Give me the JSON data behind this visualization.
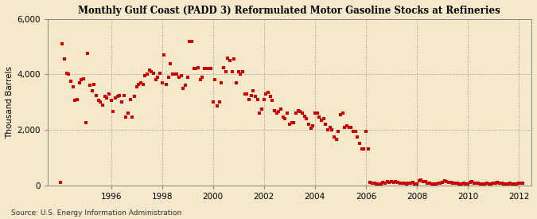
{
  "title": "Monthly Gulf Coast (PADD 3) Reformulated Motor Gasoline Stocks at Refineries",
  "ylabel": "Thousand Barrels",
  "source": "Source: U.S. Energy Information Administration",
  "background_color": "#F5E8CB",
  "plot_background_color": "#F5E8CB",
  "marker_color": "#CC0000",
  "marker_size": 3.5,
  "xlim": [
    1993.5,
    2012.5
  ],
  "ylim": [
    0,
    6000
  ],
  "yticks": [
    0,
    2000,
    4000,
    6000
  ],
  "xticks": [
    1996,
    1998,
    2000,
    2002,
    2004,
    2006,
    2008,
    2010,
    2012
  ],
  "data": [
    [
      1994.0,
      100
    ],
    [
      1994.083,
      5100
    ],
    [
      1994.167,
      4550
    ],
    [
      1994.25,
      4050
    ],
    [
      1994.333,
      4000
    ],
    [
      1994.417,
      3750
    ],
    [
      1994.5,
      3550
    ],
    [
      1994.583,
      3050
    ],
    [
      1994.667,
      3100
    ],
    [
      1994.75,
      3700
    ],
    [
      1994.833,
      3800
    ],
    [
      1994.917,
      3850
    ],
    [
      1995.0,
      2250
    ],
    [
      1995.083,
      4750
    ],
    [
      1995.167,
      3600
    ],
    [
      1995.25,
      3400
    ],
    [
      1995.333,
      3650
    ],
    [
      1995.417,
      3250
    ],
    [
      1995.5,
      3050
    ],
    [
      1995.583,
      3000
    ],
    [
      1995.667,
      2900
    ],
    [
      1995.75,
      3200
    ],
    [
      1995.833,
      3150
    ],
    [
      1995.917,
      3300
    ],
    [
      1996.0,
      3050
    ],
    [
      1996.083,
      2650
    ],
    [
      1996.167,
      3150
    ],
    [
      1996.25,
      3200
    ],
    [
      1996.333,
      3250
    ],
    [
      1996.417,
      3000
    ],
    [
      1996.5,
      3250
    ],
    [
      1996.583,
      2450
    ],
    [
      1996.667,
      2600
    ],
    [
      1996.75,
      3100
    ],
    [
      1996.833,
      2450
    ],
    [
      1996.917,
      3200
    ],
    [
      1997.0,
      3550
    ],
    [
      1997.083,
      3650
    ],
    [
      1997.167,
      3700
    ],
    [
      1997.25,
      3650
    ],
    [
      1997.333,
      3950
    ],
    [
      1997.417,
      4000
    ],
    [
      1997.5,
      4150
    ],
    [
      1997.583,
      4100
    ],
    [
      1997.667,
      4050
    ],
    [
      1997.75,
      3800
    ],
    [
      1997.833,
      3900
    ],
    [
      1997.917,
      4050
    ],
    [
      1998.0,
      3700
    ],
    [
      1998.083,
      4700
    ],
    [
      1998.167,
      3650
    ],
    [
      1998.25,
      3900
    ],
    [
      1998.333,
      4400
    ],
    [
      1998.417,
      4000
    ],
    [
      1998.5,
      4000
    ],
    [
      1998.583,
      4000
    ],
    [
      1998.667,
      3900
    ],
    [
      1998.75,
      3950
    ],
    [
      1998.833,
      3500
    ],
    [
      1998.917,
      3600
    ],
    [
      1999.0,
      3900
    ],
    [
      1999.083,
      5200
    ],
    [
      1999.167,
      5200
    ],
    [
      1999.25,
      4200
    ],
    [
      1999.333,
      4200
    ],
    [
      1999.417,
      4250
    ],
    [
      1999.5,
      3800
    ],
    [
      1999.583,
      3900
    ],
    [
      1999.667,
      4200
    ],
    [
      1999.75,
      4200
    ],
    [
      1999.833,
      4200
    ],
    [
      1999.917,
      4200
    ],
    [
      2000.0,
      3000
    ],
    [
      2000.083,
      3800
    ],
    [
      2000.167,
      2850
    ],
    [
      2000.25,
      3000
    ],
    [
      2000.333,
      3700
    ],
    [
      2000.417,
      4250
    ],
    [
      2000.5,
      4100
    ],
    [
      2000.583,
      4600
    ],
    [
      2000.667,
      4500
    ],
    [
      2000.75,
      4100
    ],
    [
      2000.833,
      4550
    ],
    [
      2000.917,
      3700
    ],
    [
      2001.0,
      4100
    ],
    [
      2001.083,
      4000
    ],
    [
      2001.167,
      4100
    ],
    [
      2001.25,
      3300
    ],
    [
      2001.333,
      3300
    ],
    [
      2001.417,
      3100
    ],
    [
      2001.5,
      3250
    ],
    [
      2001.583,
      3400
    ],
    [
      2001.667,
      3200
    ],
    [
      2001.75,
      3100
    ],
    [
      2001.833,
      2600
    ],
    [
      2001.917,
      2750
    ],
    [
      2002.0,
      3100
    ],
    [
      2002.083,
      3300
    ],
    [
      2002.167,
      3350
    ],
    [
      2002.25,
      3200
    ],
    [
      2002.333,
      3050
    ],
    [
      2002.417,
      2700
    ],
    [
      2002.5,
      2600
    ],
    [
      2002.583,
      2650
    ],
    [
      2002.667,
      2750
    ],
    [
      2002.75,
      2450
    ],
    [
      2002.833,
      2400
    ],
    [
      2002.917,
      2600
    ],
    [
      2003.0,
      2200
    ],
    [
      2003.083,
      2250
    ],
    [
      2003.167,
      2250
    ],
    [
      2003.25,
      2600
    ],
    [
      2003.333,
      2700
    ],
    [
      2003.417,
      2650
    ],
    [
      2003.5,
      2600
    ],
    [
      2003.583,
      2500
    ],
    [
      2003.667,
      2400
    ],
    [
      2003.75,
      2200
    ],
    [
      2003.833,
      2050
    ],
    [
      2003.917,
      2150
    ],
    [
      2004.0,
      2600
    ],
    [
      2004.083,
      2600
    ],
    [
      2004.167,
      2450
    ],
    [
      2004.25,
      2350
    ],
    [
      2004.333,
      2400
    ],
    [
      2004.417,
      2200
    ],
    [
      2004.5,
      2000
    ],
    [
      2004.583,
      2100
    ],
    [
      2004.667,
      2000
    ],
    [
      2004.75,
      1750
    ],
    [
      2004.833,
      1650
    ],
    [
      2004.917,
      1950
    ],
    [
      2005.0,
      2550
    ],
    [
      2005.083,
      2600
    ],
    [
      2005.167,
      2100
    ],
    [
      2005.25,
      2150
    ],
    [
      2005.333,
      2100
    ],
    [
      2005.417,
      2100
    ],
    [
      2005.5,
      1950
    ],
    [
      2005.583,
      1950
    ],
    [
      2005.667,
      1750
    ],
    [
      2005.75,
      1500
    ],
    [
      2005.833,
      1300
    ],
    [
      2005.917,
      1300
    ],
    [
      2006.0,
      1950
    ],
    [
      2006.083,
      1300
    ],
    [
      2006.167,
      100
    ],
    [
      2006.25,
      80
    ],
    [
      2006.333,
      60
    ],
    [
      2006.417,
      50
    ],
    [
      2006.5,
      30
    ],
    [
      2006.583,
      50
    ],
    [
      2006.667,
      100
    ],
    [
      2006.75,
      80
    ],
    [
      2006.833,
      120
    ],
    [
      2006.917,
      100
    ],
    [
      2007.0,
      130
    ],
    [
      2007.083,
      100
    ],
    [
      2007.167,
      120
    ],
    [
      2007.25,
      90
    ],
    [
      2007.333,
      80
    ],
    [
      2007.417,
      70
    ],
    [
      2007.5,
      60
    ],
    [
      2007.583,
      50
    ],
    [
      2007.667,
      80
    ],
    [
      2007.75,
      60
    ],
    [
      2007.833,
      90
    ],
    [
      2007.917,
      50
    ],
    [
      2008.0,
      40
    ],
    [
      2008.083,
      150
    ],
    [
      2008.167,
      200
    ],
    [
      2008.25,
      130
    ],
    [
      2008.333,
      120
    ],
    [
      2008.417,
      80
    ],
    [
      2008.5,
      60
    ],
    [
      2008.583,
      40
    ],
    [
      2008.667,
      30
    ],
    [
      2008.75,
      50
    ],
    [
      2008.833,
      70
    ],
    [
      2008.917,
      80
    ],
    [
      2009.0,
      100
    ],
    [
      2009.083,
      150
    ],
    [
      2009.167,
      120
    ],
    [
      2009.25,
      100
    ],
    [
      2009.333,
      90
    ],
    [
      2009.417,
      80
    ],
    [
      2009.5,
      70
    ],
    [
      2009.583,
      60
    ],
    [
      2009.667,
      50
    ],
    [
      2009.75,
      50
    ],
    [
      2009.833,
      60
    ],
    [
      2009.917,
      50
    ],
    [
      2010.0,
      40
    ],
    [
      2010.083,
      100
    ],
    [
      2010.167,
      120
    ],
    [
      2010.25,
      80
    ],
    [
      2010.333,
      70
    ],
    [
      2010.417,
      60
    ],
    [
      2010.5,
      50
    ],
    [
      2010.583,
      40
    ],
    [
      2010.667,
      50
    ],
    [
      2010.75,
      60
    ],
    [
      2010.833,
      50
    ],
    [
      2010.917,
      40
    ],
    [
      2011.0,
      60
    ],
    [
      2011.083,
      80
    ],
    [
      2011.167,
      90
    ],
    [
      2011.25,
      70
    ],
    [
      2011.333,
      60
    ],
    [
      2011.417,
      50
    ],
    [
      2011.5,
      40
    ],
    [
      2011.583,
      50
    ],
    [
      2011.667,
      60
    ],
    [
      2011.75,
      50
    ],
    [
      2011.833,
      40
    ],
    [
      2011.917,
      50
    ],
    [
      2012.0,
      60
    ],
    [
      2012.083,
      80
    ],
    [
      2012.167,
      70
    ]
  ]
}
